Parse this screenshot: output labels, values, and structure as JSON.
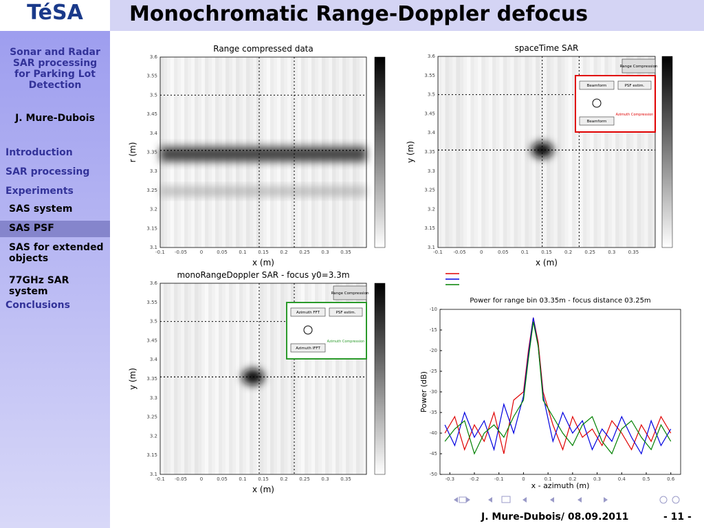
{
  "header": {
    "logo": "TéSA",
    "title": "Monochromatic Range-Doppler defocus"
  },
  "sidebar": {
    "talk_title": "Sonar and Radar SAR processing for Parking Lot Detection",
    "author": "J. Mure-Dubois",
    "sections": [
      {
        "label": "Introduction"
      },
      {
        "label": "SAR processing"
      },
      {
        "label": "Experiments",
        "subsections": [
          "SAS system",
          "SAS PSF",
          "SAS for extended objects",
          "77GHz SAR system"
        ]
      },
      {
        "label": "Conclusions"
      }
    ]
  },
  "figures": [
    {
      "title": "Range compressed data",
      "xlabel": "x (m)",
      "ylabel": "r (m)",
      "xticks": [
        "-0.1",
        "-0.05",
        "0",
        "0.05",
        "0.1",
        "0.15",
        "0.2",
        "0.25",
        "0.3",
        "0.35"
      ],
      "yticks": [
        "3.6",
        "3.55",
        "3.5",
        "3.45",
        "3.4",
        "3.35",
        "3.3",
        "3.25",
        "3.2",
        "3.15",
        "3.1"
      ]
    },
    {
      "title": "spaceTime SAR",
      "xlabel": "x (m)",
      "ylabel": "y (m)",
      "xticks": [
        "-0.1",
        "-0.05",
        "0",
        "0.05",
        "0.1",
        "0.15",
        "0.2",
        "0.25",
        "0.3",
        "0.35"
      ],
      "yticks": [
        "3.6",
        "3.55",
        "3.5",
        "3.45",
        "3.4",
        "3.35",
        "3.3",
        "3.25",
        "3.2",
        "3.15",
        "3.1"
      ],
      "diagram": [
        "Range Compression",
        "Beamform",
        "PSF estim.",
        "Beamform",
        "Azimuth Compression"
      ]
    },
    {
      "title": "monoRangeDoppler SAR - focus y0=3.3m",
      "xlabel": "x (m)",
      "ylabel": "y (m)",
      "xticks": [
        "-0.1",
        "-0.05",
        "0",
        "0.05",
        "0.1",
        "0.15",
        "0.2",
        "0.25",
        "0.3",
        "0.35"
      ],
      "yticks": [
        "3.6",
        "3.55",
        "3.5",
        "3.45",
        "3.4",
        "3.35",
        "3.3",
        "3.25",
        "3.2",
        "3.15",
        "3.1"
      ],
      "diagram": [
        "Range Compression",
        "Azimuth FFT",
        "PSF estim.",
        "Azimuth IFFT",
        "Azimuth Compression"
      ]
    }
  ],
  "chart_data": {
    "type": "line",
    "title": "Power for range bin 03.35m - focus distance 03.25m",
    "xlabel": "x - azimuth (m)",
    "ylabel": "Power (dB)",
    "x": [
      -0.32,
      -0.28,
      -0.24,
      -0.2,
      -0.16,
      -0.12,
      -0.08,
      -0.04,
      0,
      0.02,
      0.04,
      0.06,
      0.08,
      0.12,
      0.16,
      0.2,
      0.24,
      0.28,
      0.32,
      0.36,
      0.4,
      0.44,
      0.48,
      0.52,
      0.56,
      0.6
    ],
    "series": [
      {
        "color": "#e00000",
        "values": [
          -40,
          -36,
          -44,
          -38,
          -42,
          -35,
          -45,
          -32,
          -30,
          -20,
          -12,
          -18,
          -30,
          -38,
          -44,
          -36,
          -41,
          -39,
          -43,
          -37,
          -40,
          -44,
          -38,
          -42,
          -36,
          -40
        ]
      },
      {
        "color": "#0000e0",
        "values": [
          -38,
          -43,
          -35,
          -41,
          -37,
          -44,
          -33,
          -40,
          -31,
          -21,
          -12,
          -19,
          -31,
          -42,
          -35,
          -40,
          -37,
          -44,
          -39,
          -42,
          -36,
          -41,
          -45,
          -37,
          -43,
          -39
        ]
      },
      {
        "color": "#008000",
        "values": [
          -42,
          -39,
          -37,
          -45,
          -40,
          -38,
          -41,
          -36,
          -32,
          -22,
          -13,
          -19,
          -32,
          -36,
          -40,
          -43,
          -38,
          -36,
          -42,
          -45,
          -39,
          -37,
          -41,
          -44,
          -38,
          -42
        ]
      }
    ],
    "xlim": [
      -0.34,
      0.64
    ],
    "ylim": [
      -50,
      -10
    ],
    "xticks": [
      -0.3,
      -0.2,
      -0.1,
      0,
      0.1,
      0.2,
      0.3,
      0.4,
      0.5,
      0.6
    ],
    "yticks": [
      -50,
      -45,
      -40,
      -35,
      -30,
      -25,
      -20,
      -15,
      -10
    ]
  },
  "footer": {
    "author_date": "J. Mure-Dubois/ 08.09.2011",
    "page": "- 11 -"
  }
}
